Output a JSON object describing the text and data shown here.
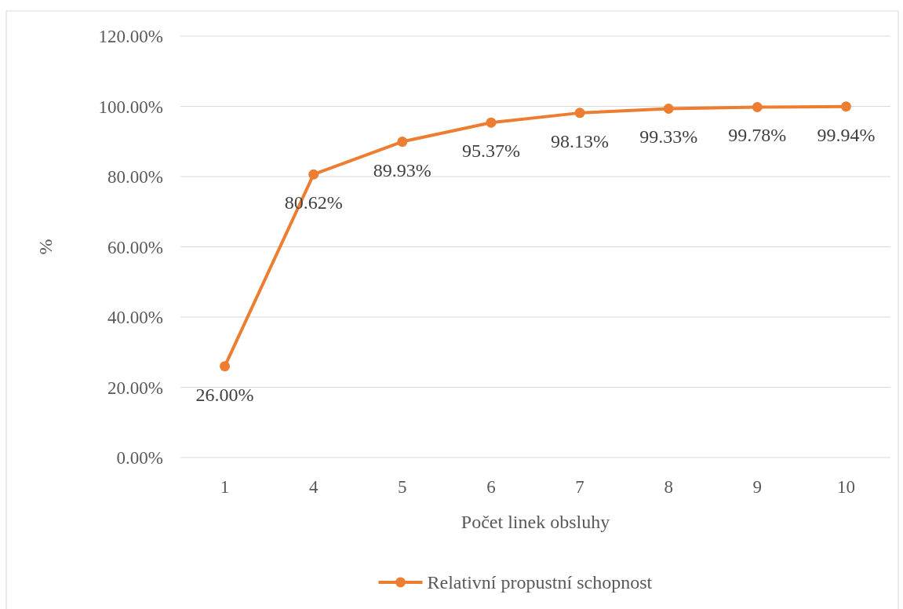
{
  "chart_data": {
    "type": "line",
    "xlabel": "Počet linek obsluhy",
    "ylabel": "%",
    "categories": [
      "1",
      "4",
      "5",
      "6",
      "7",
      "8",
      "9",
      "10"
    ],
    "series": [
      {
        "name": "Relativní propustní schopnost",
        "color": "#ed7d31",
        "values": [
          26.0,
          80.62,
          89.93,
          95.37,
          98.13,
          99.33,
          99.78,
          99.94
        ],
        "value_labels": [
          "26.00%",
          "80.62%",
          "89.93%",
          "95.37%",
          "98.13%",
          "99.33%",
          "99.78%",
          "99.94%"
        ]
      }
    ],
    "ylim": [
      0,
      120
    ],
    "yticks": [
      {
        "value": 0,
        "label": "0.00%"
      },
      {
        "value": 20,
        "label": "20.00%"
      },
      {
        "value": 40,
        "label": "40.00%"
      },
      {
        "value": 60,
        "label": "60.00%"
      },
      {
        "value": 80,
        "label": "80.00%"
      },
      {
        "value": 100,
        "label": "100.00%"
      },
      {
        "value": 120,
        "label": "120.00%"
      }
    ],
    "grid": "y",
    "legend": "bottom",
    "marker": "circle",
    "line_style": "solid"
  }
}
